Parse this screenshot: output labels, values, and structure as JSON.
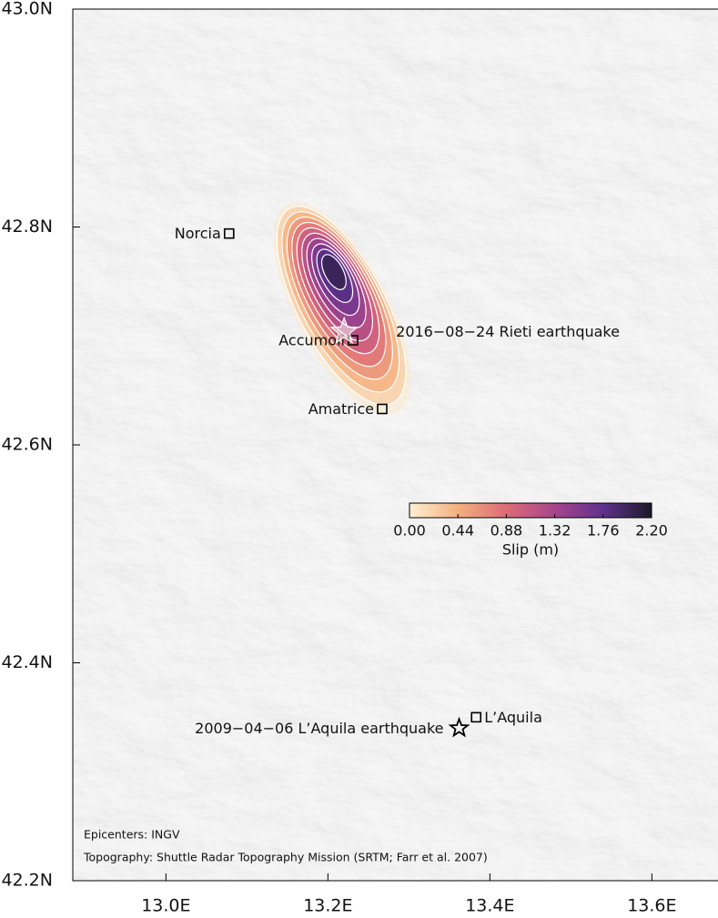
{
  "map": {
    "xlim": [
      12.885,
      13.68
    ],
    "ylim": [
      42.2,
      43.0
    ],
    "xticks": [
      {
        "value": 13.0,
        "label": "13.0E"
      },
      {
        "value": 13.2,
        "label": "13.2E"
      },
      {
        "value": 13.4,
        "label": "13.4E"
      },
      {
        "value": 13.6,
        "label": "13.6E"
      }
    ],
    "yticks": [
      {
        "value": 42.2,
        "label": "42.2N"
      },
      {
        "value": 42.4,
        "label": "42.4N"
      },
      {
        "value": 42.6,
        "label": "42.6N"
      },
      {
        "value": 42.8,
        "label": "42.8N"
      },
      {
        "value": 43.0,
        "label": "43.0N"
      }
    ],
    "places": [
      {
        "name": "Norcia",
        "lon": 13.078,
        "lat": 42.794
      },
      {
        "name": "Accumoli",
        "lon": 13.231,
        "lat": 42.696
      },
      {
        "name": "Amatrice",
        "lon": 13.267,
        "lat": 42.633
      },
      {
        "name": "L’Aquila",
        "lon": 13.383,
        "lat": 42.35
      }
    ],
    "epicenters": [
      {
        "label": "2016−08−24 Rieti earthquake",
        "lon": 13.22,
        "lat": 42.704
      },
      {
        "label": "2009−04−06 L’Aquila earthquake",
        "lon": 13.362,
        "lat": 42.34
      }
    ],
    "slip": {
      "levels": [
        0.05,
        0.2,
        0.4,
        0.6,
        0.8,
        1.0,
        1.2,
        1.4,
        1.6,
        1.8,
        2.0
      ],
      "colorbar": {
        "label": "Slip (m)",
        "lim": [
          0,
          2.2
        ],
        "ticks": [
          {
            "value": 0,
            "label": "0.00"
          },
          {
            "value": 0.44,
            "label": "0.44"
          },
          {
            "value": 0.88,
            "label": "0.88"
          },
          {
            "value": 1.32,
            "label": "1.32"
          },
          {
            "value": 1.76,
            "label": "1.76"
          },
          {
            "value": 2.2,
            "label": "2.20"
          }
        ],
        "colors": [
          "#fdf0d5",
          "#f4b07f",
          "#dd6b78",
          "#a8458b",
          "#5f318f",
          "#1c1a27"
        ]
      }
    },
    "credits": [
      "Epicenters: INGV",
      "Topography: Shuttle Radar Topography Mission (SRTM; Farr et al. 2007)"
    ]
  }
}
